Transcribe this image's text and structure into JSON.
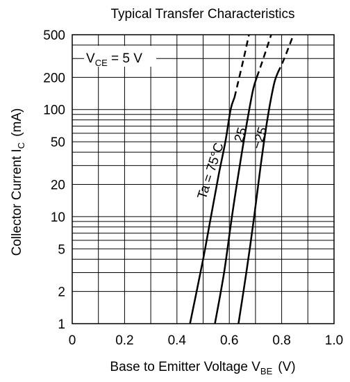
{
  "chart_data": {
    "type": "line",
    "title": "Typical Transfer Characteristics",
    "x_axis": {
      "label_main": "Base to Emitter Voltage  V",
      "label_sub": "BE",
      "label_unit": "(V)",
      "range": [
        0,
        1.0
      ],
      "ticks": [
        0,
        0.2,
        0.4,
        0.6,
        0.8,
        1.0
      ],
      "tick_labels": [
        "0",
        "0.2",
        "0.4",
        "0.6",
        "0.8",
        "1.0"
      ],
      "minor_step": 0.1
    },
    "y_axis": {
      "label_main": "Collector Current  I",
      "label_sub": "C",
      "label_unit": "(mA)",
      "scale": "log",
      "range": [
        1,
        500
      ],
      "ticks": [
        1,
        2,
        5,
        10,
        20,
        50,
        100,
        200,
        500
      ],
      "tick_labels": [
        "1",
        "2",
        "5",
        "10",
        "20",
        "50",
        "100",
        "200",
        "500"
      ],
      "gridlines": [
        1,
        2,
        3,
        4,
        5,
        6,
        7,
        8,
        9,
        10,
        20,
        30,
        40,
        50,
        60,
        70,
        80,
        90,
        100,
        200,
        300,
        400,
        500
      ]
    },
    "grid": true,
    "annotation": {
      "main": "V",
      "sub": "CE",
      "rest": " = 5 V"
    },
    "series": [
      {
        "name": "Ta = 75°C",
        "solid": [
          [
            0.45,
            1
          ],
          [
            0.5,
            4
          ],
          [
            0.53,
            10
          ],
          [
            0.56,
            25
          ],
          [
            0.585,
            50
          ],
          [
            0.605,
            100
          ],
          [
            0.62,
            130
          ]
        ],
        "dashed": [
          [
            0.62,
            130
          ],
          [
            0.655,
            300
          ],
          [
            0.675,
            500
          ]
        ]
      },
      {
        "name": "25",
        "solid": [
          [
            0.545,
            1
          ],
          [
            0.58,
            3
          ],
          [
            0.61,
            10
          ],
          [
            0.64,
            30
          ],
          [
            0.665,
            70
          ],
          [
            0.69,
            150
          ],
          [
            0.705,
            200
          ]
        ],
        "dashed": [
          [
            0.705,
            200
          ],
          [
            0.73,
            300
          ],
          [
            0.76,
            500
          ]
        ]
      },
      {
        "name": "−25",
        "solid": [
          [
            0.635,
            1
          ],
          [
            0.665,
            3
          ],
          [
            0.695,
            10
          ],
          [
            0.72,
            30
          ],
          [
            0.745,
            80
          ],
          [
            0.77,
            170
          ],
          [
            0.785,
            220
          ]
        ],
        "dashed": [
          [
            0.785,
            220
          ],
          [
            0.81,
            300
          ],
          [
            0.845,
            500
          ]
        ]
      }
    ]
  }
}
